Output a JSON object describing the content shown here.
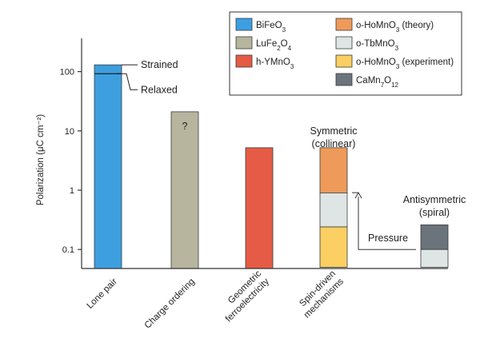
{
  "chart_data": {
    "type": "bar",
    "title": "",
    "ylabel": "Polarization (μC cm⁻²)",
    "yscale": "log",
    "ylim": [
      0.05,
      220
    ],
    "yticks": [
      {
        "value": 100,
        "label": "100"
      },
      {
        "value": 10,
        "label": "10"
      },
      {
        "value": 1,
        "label": "1"
      },
      {
        "value": 0.1,
        "label": "0.1"
      }
    ],
    "categories": [
      {
        "lines": [
          "Lone pair"
        ]
      },
      {
        "lines": [
          "Charge ordering"
        ]
      },
      {
        "lines": [
          "Geometric",
          "ferroelectricity"
        ]
      },
      {
        "lines": [
          "Spin-driven",
          "mechanisms"
        ]
      }
    ],
    "materials": [
      {
        "id": "bifeo3",
        "base": "BiFeO",
        "sub": "3",
        "after": "",
        "color": "#3d9fe0"
      },
      {
        "id": "lufe2o4",
        "base": "LuFe",
        "sub": "2",
        "after": "O",
        "sub2": "4",
        "color": "#b7b59e"
      },
      {
        "id": "hymno3",
        "base": "h-YMnO",
        "sub": "3",
        "after": "",
        "color": "#e65b45"
      },
      {
        "id": "ohomno3_theory",
        "base": "o-HoMnO",
        "sub": "3",
        "after": " (theory)",
        "color": "#ee9a5a"
      },
      {
        "id": "otbmno3",
        "base": "o-TbMnO",
        "sub": "3",
        "after": "",
        "color": "#dde6e4"
      },
      {
        "id": "ohomno3_exp",
        "base": "o-HoMnO",
        "sub": "3",
        "after": " (experiment)",
        "color": "#fbcf62"
      },
      {
        "id": "camn7o12",
        "base": "CaMn",
        "sub": "7",
        "after": "O",
        "sub2": "12",
        "color": "#6b737b"
      }
    ],
    "bars": [
      {
        "material": "bifeo3",
        "value": 130,
        "marker": 92
      },
      {
        "material": "lufe2o4",
        "value": 21
      },
      {
        "material": "hymno3",
        "value": 5.2
      },
      {
        "material": "ohomno3_theory",
        "value": 5.2,
        "segment": "upper",
        "from": 0.9
      },
      {
        "material": "otbmno3",
        "value": 0.9,
        "segment": "middle",
        "from": 0.24
      },
      {
        "material": "ohomno3_exp",
        "value": 0.24,
        "segment": "lower",
        "from": 0.05
      },
      {
        "material": "camn7o12",
        "value": 0.26,
        "segment": "upper",
        "from": 0.1
      },
      {
        "material": "otbmno3",
        "value": 0.1,
        "segment": "lower",
        "from": 0.05
      }
    ],
    "annotations": {
      "strained": "Strained",
      "relaxed": "Relaxed",
      "question": "?",
      "symmetric_1": "Symmetric",
      "symmetric_2": "(collinear)",
      "antisymmetric_1": "Antisymmetric",
      "antisymmetric_2": "(spiral)",
      "pressure": "Pressure"
    },
    "legend_position": "top-right"
  }
}
